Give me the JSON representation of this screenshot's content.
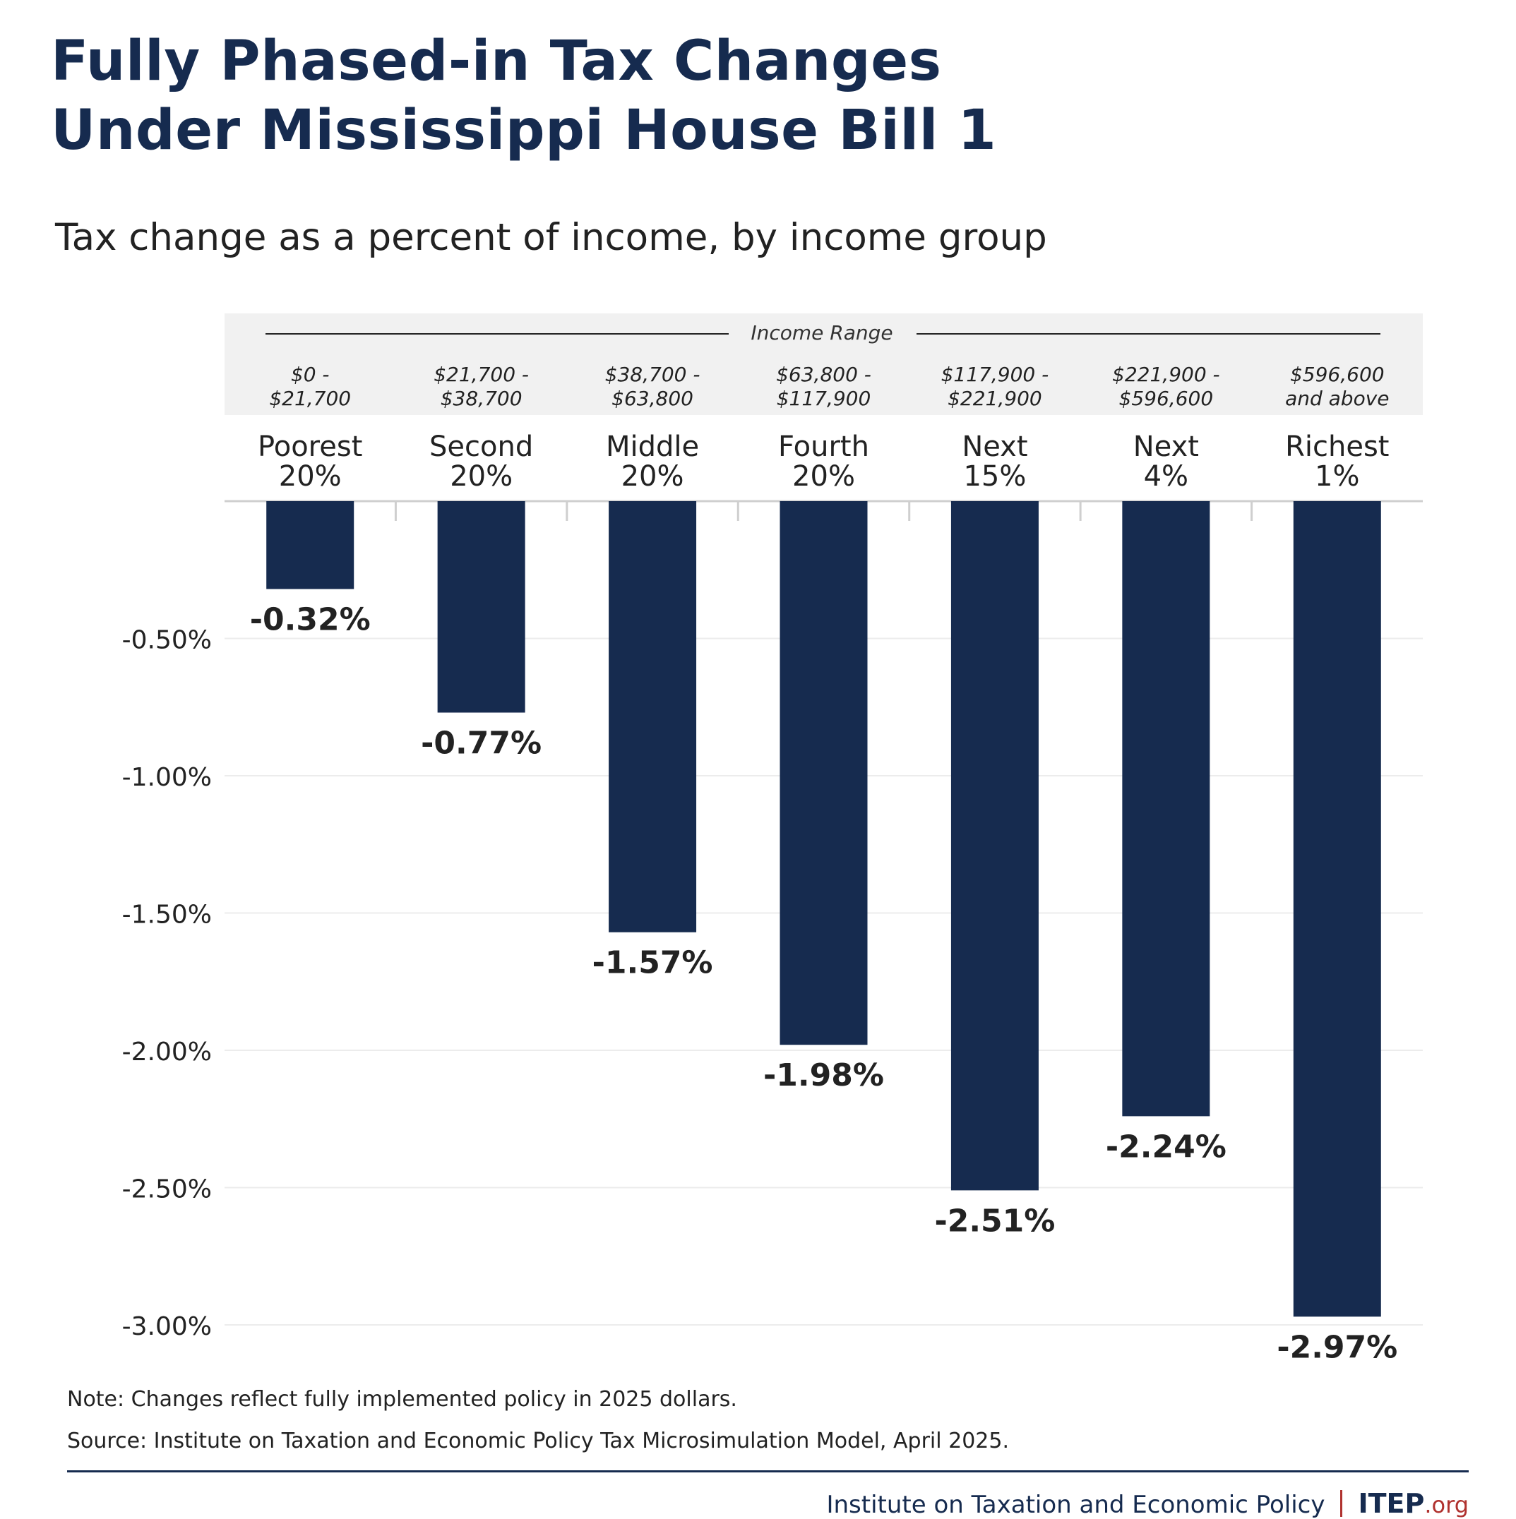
{
  "title_line1": "Fully Phased-in Tax Changes",
  "title_line2": "Under Mississippi House Bill 1",
  "subtitle": "Tax change as a percent of income, by income group",
  "header": {
    "income_range_label": "Income Range"
  },
  "chart_data": {
    "type": "bar",
    "orientation": "vertical",
    "title": "Fully Phased-in Tax Changes Under Mississippi House Bill 1",
    "subtitle": "Tax change as a percent of income, by income group",
    "categories": [
      {
        "line1": "Poorest",
        "line2": "20%",
        "range1": "$0 -",
        "range2": "$21,700"
      },
      {
        "line1": "Second",
        "line2": "20%",
        "range1": "$21,700 -",
        "range2": "$38,700"
      },
      {
        "line1": "Middle",
        "line2": "20%",
        "range1": "$38,700 -",
        "range2": "$63,800"
      },
      {
        "line1": "Fourth",
        "line2": "20%",
        "range1": "$63,800 -",
        "range2": "$117,900"
      },
      {
        "line1": "Next",
        "line2": "15%",
        "range1": "$117,900 -",
        "range2": "$221,900"
      },
      {
        "line1": "Next",
        "line2": "4%",
        "range1": "$221,900 -",
        "range2": "$596,600"
      },
      {
        "line1": "Richest",
        "line2": "1%",
        "range1": "$596,600",
        "range2": "and above"
      }
    ],
    "values": [
      -0.32,
      -0.77,
      -1.57,
      -1.98,
      -2.51,
      -2.24,
      -2.97
    ],
    "value_labels": [
      "-0.32%",
      "-0.77%",
      "-1.57%",
      "-1.98%",
      "-2.51%",
      "-2.24%",
      "-2.97%"
    ],
    "yticks": [
      -0.5,
      -1.0,
      -1.5,
      -2.0,
      -2.5,
      -3.0
    ],
    "ytick_labels": [
      "-0.50%",
      "-1.00%",
      "-1.50%",
      "-2.00%",
      "-2.50%",
      "-3.00%"
    ],
    "ylim": [
      -3.0,
      0
    ],
    "grid": true,
    "legend": "none",
    "bar_color": "#162b4f"
  },
  "note": "Note: Changes reflect fully implemented policy in 2025 dollars.",
  "source": "Source: Institute on Taxation and Economic Policy Tax Microsimulation Model, April 2025.",
  "footer": {
    "org_name": "Institute on Taxation and Economic Policy",
    "logo_main": "ITEP",
    "logo_org": ".org"
  },
  "colors": {
    "title": "#162b4f",
    "bar": "#162b4f",
    "header_band": "#f1f1f1",
    "grid": "#ececec",
    "accent": "#b0322f"
  }
}
